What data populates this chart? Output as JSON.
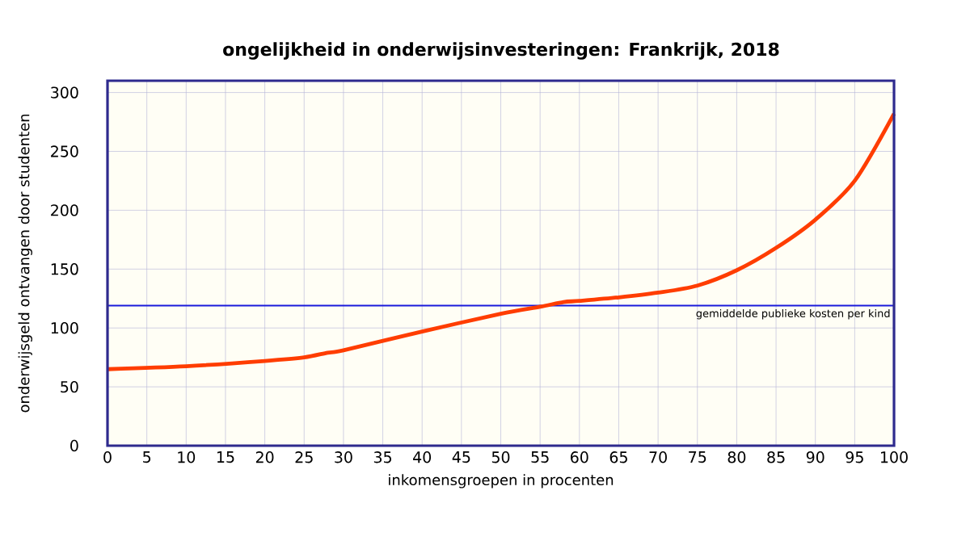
{
  "chart_data": {
    "type": "line",
    "title": "ongelijkheid in onderwijsinvesteringen: Frankrijk, 2018",
    "xlabel": "inkomensgroepen in procenten",
    "ylabel": "onderwijsgeld ontvangen door studenten",
    "x": [
      0,
      10,
      20,
      25,
      28,
      30,
      40,
      50,
      55,
      58,
      60,
      65,
      70,
      75,
      80,
      85,
      90,
      95,
      100
    ],
    "series": [
      {
        "color": "#ff3d00",
        "values": [
          65,
          67.5,
          72,
          75,
          79,
          81,
          97,
          112,
          118,
          122,
          123,
          126,
          130,
          136,
          149,
          168,
          192,
          225,
          282
        ]
      }
    ],
    "xlim": [
      0,
      100
    ],
    "ylim": [
      0,
      310
    ],
    "xticks": [
      0,
      5,
      10,
      15,
      20,
      25,
      30,
      35,
      40,
      45,
      50,
      55,
      60,
      65,
      70,
      75,
      80,
      85,
      90,
      95,
      100
    ],
    "yticks": [
      0,
      50,
      100,
      150,
      200,
      250,
      300
    ],
    "ref_lines": [
      {
        "axis": "y",
        "value": 119,
        "label": "gemiddelde publieke kosten per kind",
        "color": "#1a1adb"
      }
    ],
    "grid": true,
    "marker": "none",
    "line_style": "solid"
  }
}
